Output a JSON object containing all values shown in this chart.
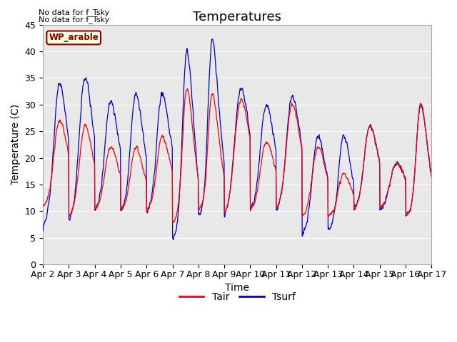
{
  "title": "Temperatures",
  "xlabel": "Time",
  "ylabel": "Temperature (C)",
  "ylim": [
    0,
    45
  ],
  "yticks": [
    0,
    5,
    10,
    15,
    20,
    25,
    30,
    35,
    40,
    45
  ],
  "x_tick_labels": [
    "Apr 2",
    "Apr 3",
    "Apr 4",
    "Apr 5",
    "Apr 6",
    "Apr 7",
    "Apr 8",
    "Apr 9",
    "Apr 10",
    "Apr 11",
    "Apr 12",
    "Apr 13",
    "Apr 14",
    "Apr 15",
    "Apr 16",
    "Apr 17"
  ],
  "annotation_lines": [
    "No data for f_Tsky",
    "No data for f_Tsky"
  ],
  "wp_label": "WP_arable",
  "legend_entries": [
    "Tair",
    "Tsurf"
  ],
  "tair_color": "#ff0000",
  "tsurf_color": "#0000cc",
  "background_color": "#ffffff",
  "plot_bg_color": "#e8e8e8",
  "grid_color": "#ffffff",
  "title_fontsize": 13,
  "label_fontsize": 10,
  "tick_fontsize": 9
}
